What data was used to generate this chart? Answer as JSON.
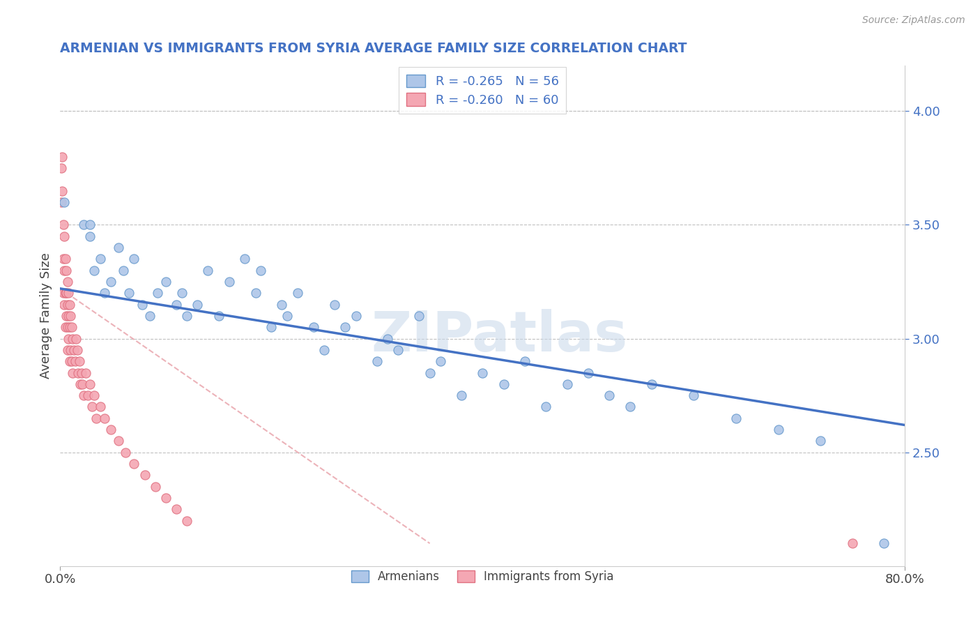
{
  "title": "ARMENIAN VS IMMIGRANTS FROM SYRIA AVERAGE FAMILY SIZE CORRELATION CHART",
  "source": "Source: ZipAtlas.com",
  "ylabel": "Average Family Size",
  "right_yticks": [
    2.5,
    3.0,
    3.5,
    4.0
  ],
  "legend_armenians_R": "R = -0.265",
  "legend_armenians_N": "N = 56",
  "legend_syria_R": "R = -0.260",
  "legend_syria_N": "N = 60",
  "legend_label_armenians": "Armenians",
  "legend_label_syria": "Immigrants from Syria",
  "color_armenians": "#aec6e8",
  "color_syria": "#f4a7b3",
  "color_border_armenians": "#6699cc",
  "color_border_syria": "#e07080",
  "color_trend_armenians": "#4472c4",
  "color_title": "#4472c4",
  "color_source": "#999999",
  "color_legend_text": "#4472c4",
  "watermark_text": "ZIPatlas",
  "armenians_x": [
    0.004,
    0.022,
    0.028,
    0.028,
    0.032,
    0.038,
    0.042,
    0.048,
    0.055,
    0.06,
    0.065,
    0.07,
    0.078,
    0.085,
    0.092,
    0.1,
    0.11,
    0.115,
    0.12,
    0.13,
    0.14,
    0.15,
    0.16,
    0.175,
    0.185,
    0.19,
    0.2,
    0.21,
    0.215,
    0.225,
    0.24,
    0.25,
    0.26,
    0.27,
    0.28,
    0.3,
    0.31,
    0.32,
    0.34,
    0.35,
    0.36,
    0.38,
    0.4,
    0.42,
    0.44,
    0.46,
    0.48,
    0.5,
    0.52,
    0.54,
    0.56,
    0.6,
    0.64,
    0.68,
    0.72,
    0.78
  ],
  "armenians_y": [
    3.6,
    3.5,
    3.5,
    3.45,
    3.3,
    3.35,
    3.2,
    3.25,
    3.4,
    3.3,
    3.2,
    3.35,
    3.15,
    3.1,
    3.2,
    3.25,
    3.15,
    3.2,
    3.1,
    3.15,
    3.3,
    3.1,
    3.25,
    3.35,
    3.2,
    3.3,
    3.05,
    3.15,
    3.1,
    3.2,
    3.05,
    2.95,
    3.15,
    3.05,
    3.1,
    2.9,
    3.0,
    2.95,
    3.1,
    2.85,
    2.9,
    2.75,
    2.85,
    2.8,
    2.9,
    2.7,
    2.8,
    2.85,
    2.75,
    2.7,
    2.8,
    2.75,
    2.65,
    2.6,
    2.55,
    2.1
  ],
  "syria_x": [
    0.001,
    0.001,
    0.002,
    0.002,
    0.003,
    0.003,
    0.003,
    0.004,
    0.004,
    0.004,
    0.005,
    0.005,
    0.005,
    0.006,
    0.006,
    0.006,
    0.007,
    0.007,
    0.007,
    0.007,
    0.008,
    0.008,
    0.008,
    0.009,
    0.009,
    0.009,
    0.01,
    0.01,
    0.011,
    0.011,
    0.012,
    0.012,
    0.013,
    0.014,
    0.015,
    0.016,
    0.017,
    0.018,
    0.019,
    0.02,
    0.021,
    0.022,
    0.024,
    0.026,
    0.028,
    0.03,
    0.032,
    0.034,
    0.038,
    0.042,
    0.048,
    0.055,
    0.062,
    0.07,
    0.08,
    0.09,
    0.1,
    0.11,
    0.12,
    0.75
  ],
  "syria_y": [
    3.75,
    3.6,
    3.8,
    3.65,
    3.5,
    3.35,
    3.2,
    3.45,
    3.3,
    3.15,
    3.35,
    3.2,
    3.05,
    3.3,
    3.2,
    3.1,
    3.25,
    3.15,
    3.05,
    2.95,
    3.2,
    3.1,
    3.0,
    3.15,
    3.05,
    2.9,
    3.1,
    2.95,
    3.05,
    2.9,
    3.0,
    2.85,
    2.95,
    2.9,
    3.0,
    2.95,
    2.85,
    2.9,
    2.8,
    2.85,
    2.8,
    2.75,
    2.85,
    2.75,
    2.8,
    2.7,
    2.75,
    2.65,
    2.7,
    2.65,
    2.6,
    2.55,
    2.5,
    2.45,
    2.4,
    2.35,
    2.3,
    2.25,
    2.2,
    2.1
  ],
  "trend_arm_x0": 0.0,
  "trend_arm_y0": 3.22,
  "trend_arm_x1": 0.8,
  "trend_arm_y1": 2.62,
  "trend_syr_x0": 0.0,
  "trend_syr_y0": 3.22,
  "trend_syr_x1": 0.35,
  "trend_syr_y1": 2.1,
  "xlim": [
    0.0,
    0.8
  ],
  "ylim": [
    2.0,
    4.2
  ]
}
